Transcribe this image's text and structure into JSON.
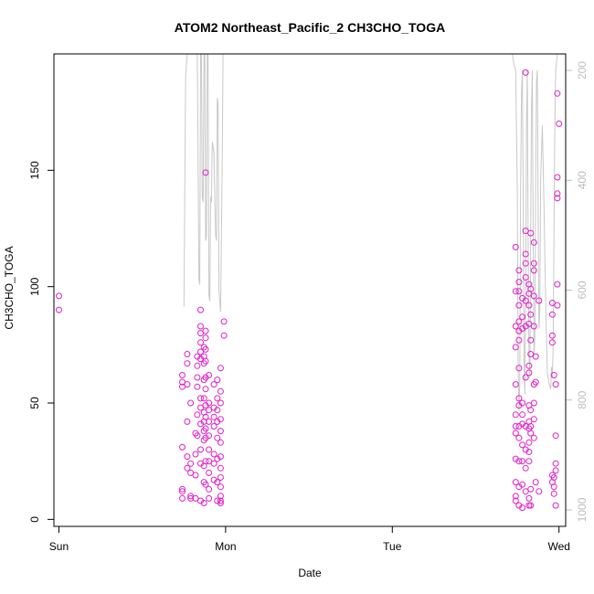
{
  "chart_data": {
    "type": "scatter",
    "title": "ATOM2 Northeast_Pacific_2 CH3CHO_TOGA",
    "xlabel": "Date",
    "ylabel": "CH3CHO_TOGA",
    "xlim": [
      -0.03,
      3.04
    ],
    "ylim": [
      -3,
      200
    ],
    "x_ticks": [
      {
        "value": 0,
        "label": "Sun"
      },
      {
        "value": 1,
        "label": "Mon"
      },
      {
        "value": 2,
        "label": "Tue"
      },
      {
        "value": 3,
        "label": "Wed"
      }
    ],
    "y_ticks": [
      0,
      50,
      100,
      150
    ],
    "y2_ticks": [
      200,
      400,
      600,
      800,
      1000
    ],
    "y2_lim": [
      1030,
      170
    ],
    "grid": false,
    "colors": {
      "points": "#e020c8",
      "altitude_line": "#c8c8c8",
      "right_axis": "#bdbdbd"
    },
    "series": [
      {
        "marker": "open-circle",
        "points": [
          [
            0.0,
            96
          ],
          [
            0.0,
            90
          ],
          [
            0.74,
            62
          ],
          [
            0.74,
            59
          ],
          [
            0.74,
            57
          ],
          [
            0.74,
            31
          ],
          [
            0.74,
            13
          ],
          [
            0.74,
            12
          ],
          [
            0.74,
            9
          ],
          [
            0.77,
            71
          ],
          [
            0.77,
            67
          ],
          [
            0.77,
            58
          ],
          [
            0.77,
            42
          ],
          [
            0.77,
            27
          ],
          [
            0.77,
            22
          ],
          [
            0.79,
            50
          ],
          [
            0.79,
            24
          ],
          [
            0.79,
            20
          ],
          [
            0.79,
            10
          ],
          [
            0.79,
            9
          ],
          [
            0.82,
            37
          ],
          [
            0.82,
            28
          ],
          [
            0.82,
            19
          ],
          [
            0.82,
            9
          ],
          [
            0.83,
            70
          ],
          [
            0.83,
            66
          ],
          [
            0.83,
            61
          ],
          [
            0.83,
            57
          ],
          [
            0.83,
            45
          ],
          [
            0.83,
            36
          ],
          [
            0.85,
            90
          ],
          [
            0.85,
            83
          ],
          [
            0.85,
            80
          ],
          [
            0.85,
            76
          ],
          [
            0.85,
            72
          ],
          [
            0.85,
            69
          ],
          [
            0.85,
            52
          ],
          [
            0.85,
            48
          ],
          [
            0.85,
            41
          ],
          [
            0.85,
            30
          ],
          [
            0.85,
            24
          ],
          [
            0.85,
            8
          ],
          [
            0.87,
            74
          ],
          [
            0.87,
            70
          ],
          [
            0.87,
            67
          ],
          [
            0.87,
            60
          ],
          [
            0.87,
            52
          ],
          [
            0.87,
            46
          ],
          [
            0.87,
            42
          ],
          [
            0.87,
            38
          ],
          [
            0.87,
            34
          ],
          [
            0.87,
            23
          ],
          [
            0.87,
            16
          ],
          [
            0.87,
            7
          ],
          [
            0.88,
            149
          ],
          [
            0.88,
            81
          ],
          [
            0.88,
            78
          ],
          [
            0.88,
            73
          ],
          [
            0.88,
            68
          ],
          [
            0.88,
            61
          ],
          [
            0.88,
            56
          ],
          [
            0.88,
            49
          ],
          [
            0.88,
            44
          ],
          [
            0.88,
            39
          ],
          [
            0.88,
            35
          ],
          [
            0.88,
            25
          ],
          [
            0.88,
            15
          ],
          [
            0.9,
            62
          ],
          [
            0.9,
            50
          ],
          [
            0.9,
            47
          ],
          [
            0.9,
            42
          ],
          [
            0.9,
            36
          ],
          [
            0.9,
            30
          ],
          [
            0.9,
            25
          ],
          [
            0.9,
            20
          ],
          [
            0.9,
            13
          ],
          [
            0.9,
            9
          ],
          [
            0.93,
            58
          ],
          [
            0.93,
            48
          ],
          [
            0.93,
            44
          ],
          [
            0.93,
            40
          ],
          [
            0.93,
            28
          ],
          [
            0.93,
            24
          ],
          [
            0.93,
            17
          ],
          [
            0.95,
            60
          ],
          [
            0.95,
            52
          ],
          [
            0.95,
            47
          ],
          [
            0.95,
            42
          ],
          [
            0.95,
            35
          ],
          [
            0.95,
            26
          ],
          [
            0.95,
            16
          ],
          [
            0.95,
            8
          ],
          [
            0.97,
            65
          ],
          [
            0.97,
            55
          ],
          [
            0.97,
            50
          ],
          [
            0.97,
            43
          ],
          [
            0.97,
            38
          ],
          [
            0.97,
            33
          ],
          [
            0.97,
            27
          ],
          [
            0.97,
            22
          ],
          [
            0.97,
            18
          ],
          [
            0.97,
            14
          ],
          [
            0.97,
            10
          ],
          [
            0.97,
            8
          ],
          [
            0.97,
            7
          ],
          [
            0.99,
            85
          ],
          [
            0.99,
            79
          ],
          [
            2.74,
            117
          ],
          [
            2.74,
            98
          ],
          [
            2.74,
            83
          ],
          [
            2.74,
            74
          ],
          [
            2.74,
            58
          ],
          [
            2.74,
            45
          ],
          [
            2.74,
            40
          ],
          [
            2.74,
            37
          ],
          [
            2.74,
            26
          ],
          [
            2.74,
            16
          ],
          [
            2.74,
            10
          ],
          [
            2.74,
            8
          ],
          [
            2.76,
            107
          ],
          [
            2.76,
            102
          ],
          [
            2.76,
            98
          ],
          [
            2.76,
            92
          ],
          [
            2.76,
            85
          ],
          [
            2.76,
            81
          ],
          [
            2.76,
            77
          ],
          [
            2.76,
            65
          ],
          [
            2.76,
            52
          ],
          [
            2.76,
            49
          ],
          [
            2.76,
            40
          ],
          [
            2.76,
            35
          ],
          [
            2.76,
            25
          ],
          [
            2.76,
            14
          ],
          [
            2.76,
            6
          ],
          [
            2.78,
            95
          ],
          [
            2.78,
            87
          ],
          [
            2.78,
            82
          ],
          [
            2.78,
            50
          ],
          [
            2.78,
            45
          ],
          [
            2.78,
            41
          ],
          [
            2.78,
            32
          ],
          [
            2.78,
            25
          ],
          [
            2.78,
            15
          ],
          [
            2.78,
            5
          ],
          [
            2.8,
            192
          ],
          [
            2.8,
            124
          ],
          [
            2.8,
            114
          ],
          [
            2.8,
            110
          ],
          [
            2.8,
            104
          ],
          [
            2.8,
            94
          ],
          [
            2.8,
            83
          ],
          [
            2.8,
            61
          ],
          [
            2.8,
            40
          ],
          [
            2.8,
            30
          ],
          [
            2.8,
            22
          ],
          [
            2.8,
            12
          ],
          [
            2.82,
            101
          ],
          [
            2.82,
            97
          ],
          [
            2.82,
            92
          ],
          [
            2.82,
            84
          ],
          [
            2.82,
            66
          ],
          [
            2.82,
            63
          ],
          [
            2.82,
            49
          ],
          [
            2.82,
            42
          ],
          [
            2.82,
            39
          ],
          [
            2.82,
            33
          ],
          [
            2.82,
            29
          ],
          [
            2.82,
            25
          ],
          [
            2.82,
            9
          ],
          [
            2.82,
            6
          ],
          [
            2.83,
            123
          ],
          [
            2.83,
            99
          ],
          [
            2.83,
            88
          ],
          [
            2.83,
            77
          ],
          [
            2.83,
            71
          ],
          [
            2.83,
            47
          ],
          [
            2.83,
            40
          ],
          [
            2.83,
            37
          ],
          [
            2.83,
            13
          ],
          [
            2.83,
            6
          ],
          [
            2.85,
            119
          ],
          [
            2.85,
            110
          ],
          [
            2.85,
            107
          ],
          [
            2.85,
            96
          ],
          [
            2.85,
            83
          ],
          [
            2.85,
            58
          ],
          [
            2.85,
            50
          ],
          [
            2.85,
            43
          ],
          [
            2.85,
            35
          ],
          [
            2.86,
            70
          ],
          [
            2.86,
            59
          ],
          [
            2.86,
            16
          ],
          [
            2.88,
            94
          ],
          [
            2.88,
            12
          ],
          [
            2.96,
            93
          ],
          [
            2.96,
            88
          ],
          [
            2.96,
            79
          ],
          [
            2.96,
            76
          ],
          [
            2.96,
            19
          ],
          [
            2.96,
            16
          ],
          [
            2.97,
            62
          ],
          [
            2.97,
            18
          ],
          [
            2.97,
            14
          ],
          [
            2.97,
            11
          ],
          [
            2.98,
            58
          ],
          [
            2.98,
            36
          ],
          [
            2.98,
            24
          ],
          [
            2.98,
            21
          ],
          [
            2.98,
            6
          ],
          [
            2.99,
            183
          ],
          [
            2.99,
            147
          ],
          [
            2.99,
            140
          ],
          [
            2.99,
            138
          ],
          [
            2.99,
            101
          ],
          [
            2.99,
            92
          ],
          [
            3.0,
            170
          ]
        ]
      },
      {
        "kind": "line",
        "axis": "right",
        "points": [
          [
            0.75,
            630
          ],
          [
            0.76,
            210
          ],
          [
            0.77,
            120
          ],
          [
            0.78,
            140
          ],
          [
            0.79,
            120
          ],
          [
            0.81,
            140
          ],
          [
            0.82,
            120
          ],
          [
            0.83,
            120
          ],
          [
            0.84,
            580
          ],
          [
            0.845,
            590
          ],
          [
            0.85,
            120
          ],
          [
            0.855,
            130
          ],
          [
            0.86,
            430
          ],
          [
            0.865,
            440
          ],
          [
            0.87,
            120
          ],
          [
            0.875,
            130
          ],
          [
            0.88,
            510
          ],
          [
            0.885,
            500
          ],
          [
            0.89,
            120
          ],
          [
            0.895,
            140
          ],
          [
            0.9,
            610
          ],
          [
            0.905,
            620
          ],
          [
            0.91,
            430
          ],
          [
            0.915,
            440
          ],
          [
            0.92,
            330
          ],
          [
            0.93,
            350
          ],
          [
            0.94,
            500
          ],
          [
            0.945,
            510
          ],
          [
            0.95,
            250
          ],
          [
            0.955,
            260
          ],
          [
            0.96,
            600
          ],
          [
            0.965,
            620
          ],
          [
            0.97,
            640
          ],
          [
            0.98,
            360
          ],
          [
            0.985,
            160
          ],
          [
            0.99,
            120
          ],
          [
            1.0,
            140
          ],
          [
            2.7,
            170
          ],
          [
            2.72,
            170
          ],
          [
            2.73,
            190
          ],
          [
            2.74,
            200
          ],
          [
            2.75,
            420
          ],
          [
            2.755,
            740
          ],
          [
            2.76,
            820
          ],
          [
            2.765,
            770
          ],
          [
            2.77,
            410
          ],
          [
            2.775,
            240
          ],
          [
            2.78,
            200
          ],
          [
            2.785,
            420
          ],
          [
            2.79,
            730
          ],
          [
            2.795,
            790
          ],
          [
            2.8,
            610
          ],
          [
            2.805,
            300
          ],
          [
            2.81,
            200
          ],
          [
            2.815,
            540
          ],
          [
            2.82,
            720
          ],
          [
            2.825,
            760
          ],
          [
            2.83,
            500
          ],
          [
            2.835,
            270
          ],
          [
            2.84,
            200
          ],
          [
            2.845,
            490
          ],
          [
            2.85,
            720
          ],
          [
            2.855,
            690
          ],
          [
            2.86,
            400
          ],
          [
            2.865,
            220
          ],
          [
            2.87,
            200
          ],
          [
            2.875,
            460
          ],
          [
            2.88,
            670
          ],
          [
            2.885,
            640
          ],
          [
            2.89,
            400
          ],
          [
            2.9,
            300
          ],
          [
            2.91,
            450
          ],
          [
            2.92,
            620
          ],
          [
            2.93,
            750
          ],
          [
            2.94,
            770
          ],
          [
            2.95,
            780
          ],
          [
            2.955,
            740
          ],
          [
            2.96,
            760
          ],
          [
            2.965,
            700
          ],
          [
            2.97,
            500
          ],
          [
            2.975,
            300
          ],
          [
            2.98,
            200
          ],
          [
            2.99,
            170
          ]
        ]
      }
    ]
  }
}
